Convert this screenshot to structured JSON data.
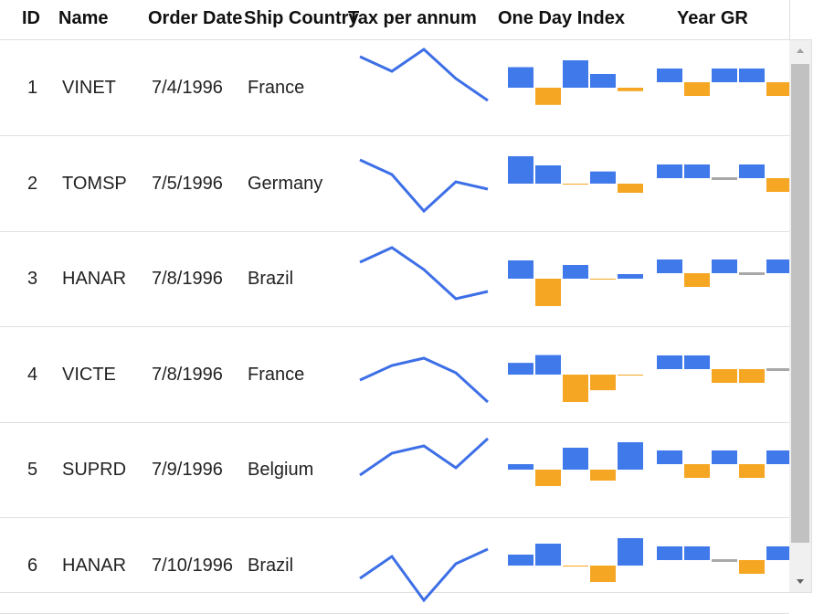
{
  "colors": {
    "line": "#3d6fe6",
    "positive": "#4079ea",
    "negative": "#f5a623",
    "zero": "#a8a8a8"
  },
  "columns": [
    {
      "key": "id",
      "label": "ID"
    },
    {
      "key": "name",
      "label": "Name"
    },
    {
      "key": "order",
      "label": "Order Date"
    },
    {
      "key": "ship",
      "label": "Ship Country"
    },
    {
      "key": "tax",
      "label": "Tax per annum"
    },
    {
      "key": "oneday",
      "label": "One Day Index"
    },
    {
      "key": "yeargr",
      "label": "Year GR"
    }
  ],
  "rows": [
    {
      "id": "1",
      "name": "VINET",
      "order": "7/4/1996",
      "ship": "France",
      "tax": [
        5,
        3,
        6,
        2,
        -1
      ],
      "oneday": [
        6,
        -5,
        8,
        4,
        -1
      ],
      "yeargr": [
        3,
        -3,
        3,
        3,
        -3
      ]
    },
    {
      "id": "2",
      "name": "TOMSP",
      "order": "7/5/1996",
      "ship": "Germany",
      "tax": [
        4,
        2,
        -3,
        1,
        0
      ],
      "oneday": [
        9,
        6,
        0,
        4,
        -3
      ],
      "yeargr": [
        3,
        3,
        0,
        3,
        -3
      ]
    },
    {
      "id": "3",
      "name": "HANAR",
      "order": "7/8/1996",
      "ship": "Brazil",
      "tax": [
        3,
        5,
        2,
        -2,
        -1
      ],
      "oneday": [
        4,
        -6,
        3,
        0,
        1
      ],
      "yeargr": [
        3,
        -3,
        3,
        0,
        3
      ]
    },
    {
      "id": "4",
      "name": "VICTE",
      "order": "7/8/1996",
      "ship": "France",
      "tax": [
        0,
        2,
        3,
        1,
        -3
      ],
      "oneday": [
        3,
        5,
        -7,
        -4,
        0
      ],
      "yeargr": [
        3,
        3,
        -3,
        -3,
        0
      ]
    },
    {
      "id": "5",
      "name": "SUPRD",
      "order": "7/9/1996",
      "ship": "Belgium",
      "tax": [
        0,
        3,
        4,
        1,
        5
      ],
      "oneday": [
        1,
        -3,
        4,
        -2,
        5
      ],
      "yeargr": [
        3,
        -3,
        3,
        -3,
        3
      ]
    },
    {
      "id": "6",
      "name": "HANAR",
      "order": "7/10/1996",
      "ship": "Brazil",
      "tax": [
        -1,
        2,
        -4,
        1,
        3
      ],
      "oneday": [
        2,
        4,
        0,
        -3,
        5
      ],
      "yeargr": [
        3,
        3,
        0,
        -3,
        3
      ]
    }
  ]
}
